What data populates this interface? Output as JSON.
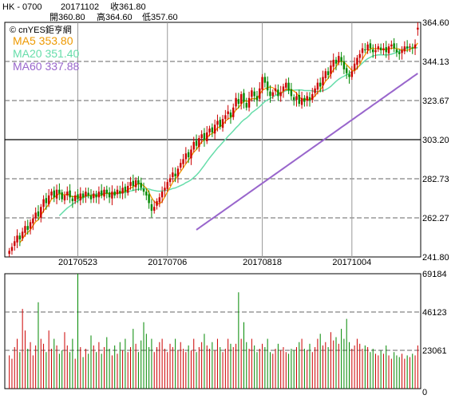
{
  "header": {
    "symbol": "HK - 0700",
    "date": "20171102",
    "close_label": "收361.80",
    "open_label": "開360.80",
    "high_label": "高364.60",
    "low_label": "低357.60"
  },
  "legend": {
    "brand": "© cnYES鉅亨網",
    "ma5": "MA5 353.80",
    "ma20": "MA20 351.40",
    "ma60": "MA60 337.88"
  },
  "colors": {
    "up": "#cc0000",
    "down": "#008800",
    "ma5": "#ee9900",
    "ma20": "#66ddaa",
    "ma60": "#9966cc",
    "grid": "#666666"
  },
  "chart_data": [
    {
      "type": "candlestick",
      "title": "",
      "x_tick_labels": [
        "20170523",
        "20170706",
        "20170818",
        "20171004"
      ],
      "y_tick_labels": [
        "364.60",
        "344.13",
        "323.67",
        "303.20",
        "282.73",
        "262.27",
        "241.80"
      ],
      "ylim": [
        241.8,
        364.6
      ],
      "grid": true,
      "last_bar": {
        "date": "20171102",
        "open": 360.8,
        "high": 364.6,
        "low": 357.6,
        "close": 361.8
      },
      "closes": [
        245,
        247,
        250,
        253,
        251,
        255,
        258,
        256,
        260,
        262,
        265,
        263,
        268,
        272,
        270,
        274,
        276,
        273,
        277,
        275,
        272,
        274,
        276,
        273,
        271,
        274,
        272,
        275,
        273,
        276,
        274,
        272,
        275,
        273,
        276,
        274,
        277,
        275,
        273,
        276,
        274,
        277,
        275,
        278,
        276,
        279,
        281,
        279,
        282,
        280,
        278,
        276,
        274,
        270,
        266,
        268,
        271,
        273,
        276,
        278,
        281,
        283,
        286,
        284,
        288,
        291,
        293,
        296,
        294,
        298,
        302,
        300,
        304,
        306,
        303,
        307,
        309,
        307,
        311,
        313,
        310,
        314,
        316,
        318,
        315,
        320,
        325,
        322,
        327,
        323,
        320,
        325,
        329,
        326,
        324,
        330,
        336,
        333,
        329,
        326,
        328,
        330,
        326,
        328,
        331,
        333,
        329,
        326,
        324,
        326,
        322,
        325,
        323,
        326,
        324,
        327,
        330,
        333,
        331,
        336,
        339,
        337,
        342,
        345,
        343,
        347,
        344,
        340,
        338,
        336,
        339,
        343,
        346,
        348,
        351,
        350,
        353,
        351,
        349,
        350,
        352,
        350,
        351,
        349,
        352,
        353,
        351,
        349,
        348,
        350,
        352,
        351,
        352,
        351,
        353,
        361.8
      ],
      "ma5": [
        null,
        null,
        null,
        null,
        249.2,
        251.2,
        253.4,
        254.6,
        256,
        258.2,
        260.2,
        261.2,
        263.6,
        266,
        267.6,
        269.4,
        272,
        273,
        274,
        275,
        274.6,
        274.2,
        274.8,
        274,
        273.2,
        273.6,
        273.2,
        273,
        273,
        274,
        274,
        274,
        274,
        274,
        274,
        274,
        275,
        275,
        275,
        275,
        275,
        275.4,
        275.2,
        276,
        276,
        277,
        277.8,
        278.6,
        279.4,
        280.2,
        280,
        279,
        277.8,
        275.6,
        272.8,
        270.8,
        269.8,
        269.6,
        270.8,
        273.2,
        275.8,
        278.2,
        280.8,
        282.4,
        284.4,
        286.4,
        288.4,
        290.6,
        292.4,
        294.4,
        296.6,
        298,
        300,
        302,
        303,
        304,
        305.8,
        306.4,
        307.4,
        309.4,
        310,
        311,
        312.8,
        314.2,
        314.6,
        316.6,
        318.8,
        320,
        321.8,
        323.4,
        323.4,
        323.4,
        324.8,
        324.6,
        324.8,
        326.8,
        329,
        329.8,
        330.4,
        330.8,
        330.4,
        329.2,
        327.8,
        327.6,
        328.6,
        329.6,
        329.4,
        329.4,
        328.6,
        327.6,
        325.4,
        324.6,
        324,
        324.4,
        324,
        325,
        326,
        328,
        329,
        331.4,
        333.8,
        335.2,
        337.4,
        339.8,
        341.2,
        344,
        344.2,
        343.8,
        342.4,
        341,
        339.4,
        339.2,
        340.4,
        342.4,
        345.4,
        347.6,
        349.6,
        350.6,
        351.2,
        350.6,
        351,
        350.4,
        350.4,
        350.4,
        350.8,
        351,
        351.2,
        350.8,
        350.6,
        350.2,
        350,
        350,
        350.4,
        351.2,
        351.8,
        353.8
      ],
      "ma20": [
        null,
        null,
        null,
        null,
        null,
        null,
        null,
        null,
        null,
        null,
        null,
        null,
        null,
        null,
        null,
        null,
        null,
        null,
        null,
        263.4,
        264.75,
        266.1,
        267.4,
        268.4,
        269.4,
        270.35,
        271.05,
        272,
        272.65,
        273.35,
        273.8,
        274.25,
        274.6,
        274.65,
        274.95,
        274.95,
        275,
        275.1,
        274.9,
        274.95,
        275.05,
        275.2,
        275.15,
        275.4,
        275.65,
        275.9,
        276.35,
        276.55,
        277,
        277.2,
        277.4,
        277.6,
        277.55,
        277.4,
        276.9,
        276.6,
        276.3,
        276.2,
        276.35,
        276.45,
        276.8,
        277.1,
        277.65,
        277.95,
        278.55,
        279.15,
        279.75,
        280.7,
        281.3,
        282.2,
        283.4,
        284.6,
        286.1,
        287.9,
        289.75,
        291.7,
        293.6,
        295.3,
        297.05,
        298.8,
        300.25,
        301.8,
        303.3,
        305,
        306.35,
        307.8,
        309.4,
        310.7,
        312.35,
        313.6,
        314.5,
        315.75,
        317.3,
        318.3,
        319.35,
        320.5,
        321.85,
        323.15,
        324.05,
        324.7,
        325.6,
        326.4,
        326.9,
        327.4,
        328.2,
        328.85,
        329,
        329.2,
        329.05,
        329.2,
        329.2,
        329.2,
        328.9,
        328.9,
        328.9,
        328.75,
        328.4,
        328.4,
        328.5,
        328.8,
        329.35,
        330.1,
        331.05,
        332.4,
        333.75,
        334.85,
        335.75,
        336.4,
        337.15,
        337.85,
        338.75,
        339.75,
        340.85,
        341.95,
        343.3,
        344.6,
        345.6,
        346.3,
        347,
        347.35,
        347.6,
        347.6,
        347.6,
        347.5,
        347.65,
        347.95,
        348.35,
        348.9,
        349.55,
        350.15,
        350.8,
        351.2,
        351.3,
        351.1,
        351.15,
        351.4
      ],
      "ma60_range": [
        256,
        337.88
      ],
      "ma60_start_fraction": 0.46
    },
    {
      "type": "bar",
      "title": "",
      "y_tick_labels": [
        "69184",
        "46123",
        "23061",
        "0"
      ],
      "ylim": [
        0,
        69184
      ],
      "volumes": [
        20000,
        18000,
        25000,
        30000,
        22000,
        48000,
        35000,
        24000,
        28000,
        20000,
        26000,
        52000,
        30000,
        27000,
        22000,
        35000,
        24000,
        30000,
        26000,
        21000,
        23000,
        34000,
        26000,
        22000,
        30000,
        18000,
        72000,
        25000,
        19000,
        24000,
        21000,
        32000,
        26000,
        22000,
        28000,
        21000,
        25000,
        31000,
        24000,
        20000,
        26000,
        21000,
        28000,
        23000,
        30000,
        22000,
        25000,
        36000,
        27000,
        22000,
        29000,
        40000,
        33000,
        25000,
        30000,
        22000,
        25000,
        28000,
        30000,
        24000,
        22000,
        27000,
        25000,
        30000,
        23000,
        28000,
        24000,
        22000,
        26000,
        23000,
        30000,
        22000,
        25000,
        28000,
        33000,
        26000,
        24000,
        28000,
        23000,
        30000,
        25000,
        22000,
        24000,
        30000,
        27000,
        25000,
        27000,
        58000,
        30000,
        40000,
        28000,
        24000,
        30000,
        26000,
        22000,
        24000,
        27000,
        25000,
        30000,
        22000,
        21000,
        24000,
        27000,
        23000,
        25000,
        22000,
        21000,
        24000,
        23000,
        25000,
        28000,
        30000,
        24000,
        23000,
        27000,
        22000,
        25000,
        30000,
        33000,
        26000,
        28000,
        25000,
        34000,
        29000,
        31000,
        27000,
        36000,
        30000,
        42000,
        28000,
        24000,
        26000,
        30000,
        27000,
        24000,
        26000,
        25000,
        22000,
        24000,
        21000,
        20000,
        23000,
        21000,
        26000,
        20000,
        18000,
        22000,
        20000,
        19000,
        21000,
        18000,
        20000,
        19000,
        21000,
        20000,
        26000
      ]
    }
  ]
}
